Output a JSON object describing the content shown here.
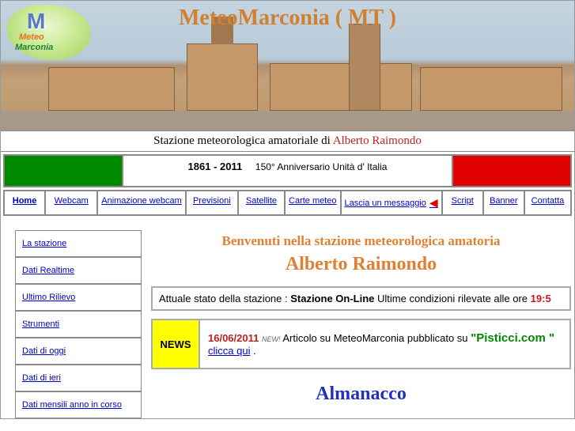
{
  "header": {
    "site_title": "MeteoMarconia ( MT )",
    "logo": {
      "letter": "M",
      "line1": "Meteo",
      "line2": "Marconia"
    },
    "subtitle_prefix": "Stazione   meteorologica   amatoriale   di ",
    "subtitle_name": "Alberto Raimondo"
  },
  "flag": {
    "years": "1861 - 2011",
    "text": "150° Anniversario Unità d' Italia",
    "colors": {
      "green": "#008800",
      "white": "#ffffff",
      "red": "#e00000"
    }
  },
  "nav": {
    "home": "Home",
    "webcam": "Webcam",
    "anim": "Animazione webcam",
    "prev": "Previsioni",
    "sat": "Satellite",
    "carte": "Carte meteo",
    "msg": "Lascia un messaggio ",
    "script": "Script",
    "banner": "Banner",
    "contatta": "Contatta"
  },
  "sidebar": {
    "items": [
      "La stazione",
      "Dati Realtime",
      "Ultimo Rilievo",
      "Strumenti",
      "Dati di oggi",
      "Dati di ieri",
      "Dati mensili anno in corso"
    ]
  },
  "content": {
    "welcome": "Benvenuti nella stazione meteorologica amatoria",
    "name": "Alberto Raimondo",
    "status_prefix": "Attuale stato della stazione : ",
    "status_value": "Stazione On-Line",
    "status_suffix": " Ultime condizioni rilevate alle ore  ",
    "status_time": "19:5",
    "news_label": "NEWS",
    "news_date": "16/06/2011",
    "news_new": "NEW!",
    "news_text1": " Articolo su  MeteoMarconia pubblicato su ",
    "news_site": "\"Pisticci.com \"",
    "news_link": "clicca qui",
    "news_text2": " .",
    "almanacco": "Almanacco"
  },
  "colors": {
    "accent_orange": "#e08030",
    "link_blue": "#0000cc",
    "title_blue": "#2030c0",
    "text_red": "#c02020",
    "news_yellow": "#ffff00",
    "site_green": "#008800"
  }
}
